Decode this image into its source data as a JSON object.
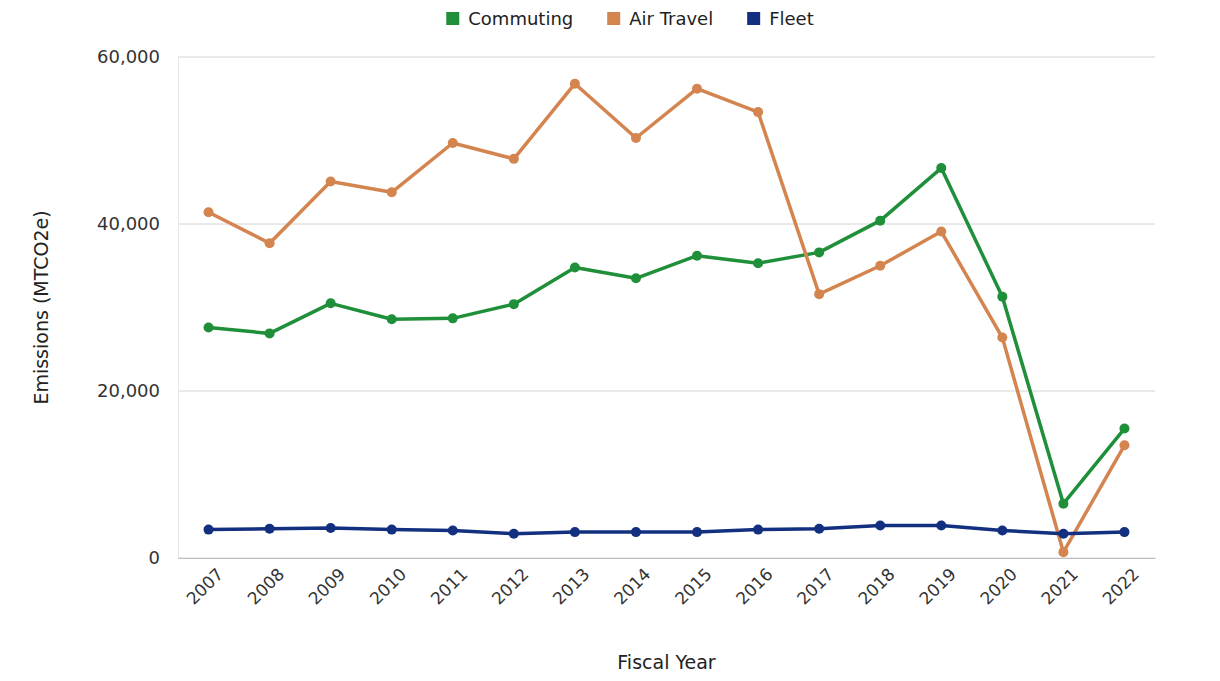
{
  "chart_data": {
    "type": "line",
    "x_label": "Fiscal Year",
    "y_label": "Emissions (MTCO2e)",
    "categories": [
      "2007",
      "2008",
      "2009",
      "2010",
      "2011",
      "2012",
      "2013",
      "2014",
      "2015",
      "2016",
      "2017",
      "2018",
      "2019",
      "2020",
      "2021",
      "2022"
    ],
    "series": [
      {
        "name": "Commuting",
        "color": "#1f8f3a",
        "marker": "circle",
        "values": [
          27600,
          26900,
          30500,
          28600,
          28700,
          30400,
          34800,
          33500,
          36200,
          35300,
          36600,
          40400,
          46700,
          31300,
          6500,
          15500
        ]
      },
      {
        "name": "Air Travel",
        "color": "#d4844e",
        "marker": "circle",
        "values": [
          41400,
          37700,
          45100,
          43800,
          49700,
          47800,
          56800,
          50300,
          56200,
          53400,
          31600,
          35000,
          39100,
          26400,
          700,
          13500
        ]
      },
      {
        "name": "Fleet",
        "color": "#12307f",
        "marker": "circle",
        "values": [
          3400,
          3500,
          3600,
          3400,
          3300,
          2900,
          3100,
          3100,
          3100,
          3400,
          3500,
          3900,
          3900,
          3300,
          2900,
          3100
        ]
      }
    ],
    "ylim": [
      0,
      60000
    ],
    "yticks": [
      0,
      {
        "value": 20000,
        "label": "20,000"
      },
      {
        "value": 40000,
        "label": "40,000"
      },
      {
        "value": 60000,
        "label": "60,000"
      }
    ],
    "grid": true,
    "legend": "top"
  }
}
